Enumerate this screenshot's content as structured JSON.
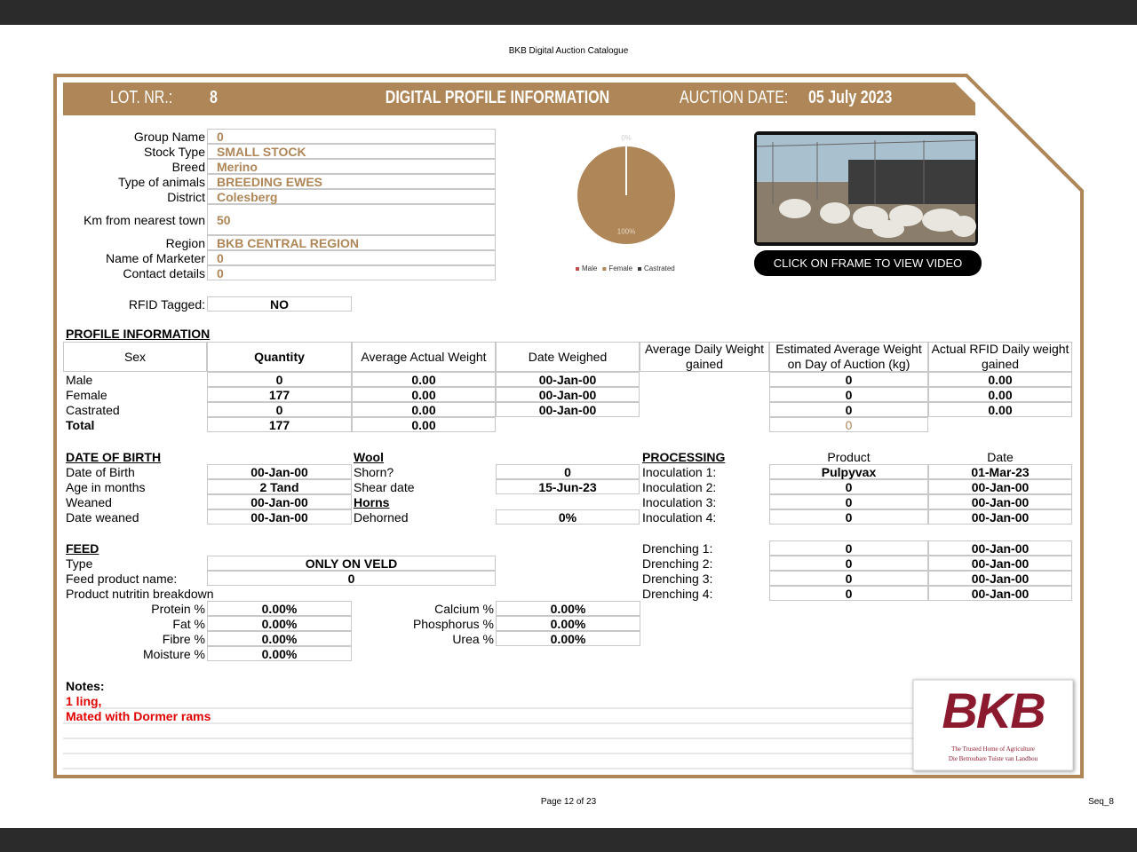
{
  "header": {
    "document_title": "BKB Digital Auction Catalogue",
    "lot_label": "LOT. NR.:",
    "lot_number": "8",
    "title": "DIGITAL PROFILE INFORMATION",
    "auction_date_label": "AUCTION DATE:",
    "auction_date": "05 July 2023"
  },
  "details": [
    {
      "label": "Group Name",
      "value": "0"
    },
    {
      "label": "Stock Type",
      "value": "SMALL STOCK"
    },
    {
      "label": "Breed",
      "value": "Merino"
    },
    {
      "label": "Type of animals",
      "value": "BREEDING EWES"
    },
    {
      "label": "District",
      "value": "Colesberg"
    },
    {
      "label": "Km from nearest town",
      "value": "50"
    },
    {
      "label": "Region",
      "value": "BKB CENTRAL REGION"
    },
    {
      "label": "Name of Marketer",
      "value": "0"
    },
    {
      "label": "Contact details",
      "value": "0"
    }
  ],
  "rfid": {
    "label": "RFID Tagged:",
    "value": "NO"
  },
  "chart_data": {
    "type": "pie",
    "categories": [
      "Male",
      "Female",
      "Castrated"
    ],
    "values": [
      0,
      100,
      0
    ],
    "value_labels": [
      "0%",
      "100%",
      null
    ],
    "colors": [
      "#c0504d",
      "#ae8658",
      "#3a3a3a"
    ]
  },
  "video": {
    "button": "CLICK ON FRAME TO VIEW VIDEO"
  },
  "profile": {
    "title": "PROFILE INFORMATION",
    "columns": [
      "Sex",
      "Quantity",
      "Average Actual Weight",
      "Date Weighed",
      "Average Daily Weight gained",
      "Estimated Average Weight on Day of Auction (kg)",
      "Actual RFID Daily weight gained"
    ],
    "rows": [
      [
        "Male",
        "0",
        "0.00",
        "00-Jan-00",
        null,
        "0",
        "0.00"
      ],
      [
        "Female",
        "177",
        "0.00",
        "00-Jan-00",
        null,
        "0",
        "0.00"
      ],
      [
        "Castrated",
        "0",
        "0.00",
        "00-Jan-00",
        null,
        "0",
        "0.00"
      ],
      [
        "Total",
        "177",
        "0.00",
        null,
        null,
        "0",
        null
      ]
    ]
  },
  "birth": {
    "title": "DATE OF BIRTH",
    "rows": [
      {
        "label": "Date of Birth",
        "value": "00-Jan-00"
      },
      {
        "label": "Age in months",
        "value": "2 Tand"
      },
      {
        "label": "Weaned",
        "value": "00-Jan-00"
      },
      {
        "label": "Date weaned",
        "value": "00-Jan-00"
      }
    ]
  },
  "wool": {
    "title": "Wool",
    "rows": [
      {
        "label": "Shorn?",
        "value": "0"
      },
      {
        "label": "Shear date",
        "value": "15-Jun-23"
      }
    ],
    "horns_title": "Horns",
    "horns_rows": [
      {
        "label": "Dehorned",
        "value": "0%"
      }
    ]
  },
  "processing": {
    "title": "PROCESSING",
    "product_header": "Product",
    "date_header": "Date",
    "inoculations": [
      {
        "label": "Inoculation 1:",
        "product": "Pulpyvax",
        "date": "01-Mar-23"
      },
      {
        "label": "Inoculation 2:",
        "product": "0",
        "date": "00-Jan-00"
      },
      {
        "label": "Inoculation 3:",
        "product": "0",
        "date": "00-Jan-00"
      },
      {
        "label": "Inoculation 4:",
        "product": "0",
        "date": "00-Jan-00"
      }
    ],
    "drenchings": [
      {
        "label": "Drenching 1:",
        "product": "0",
        "date": "00-Jan-00"
      },
      {
        "label": "Drenching 2:",
        "product": "0",
        "date": "00-Jan-00"
      },
      {
        "label": "Drenching 3:",
        "product": "0",
        "date": "00-Jan-00"
      },
      {
        "label": "Drenching 4:",
        "product": "0",
        "date": "00-Jan-00"
      }
    ]
  },
  "feed": {
    "title": "FEED",
    "type_label": "Type",
    "type": "ONLY ON VELD",
    "product_label": "Feed product name:",
    "product": "0",
    "breakdown_label": "Product nutritin breakdown",
    "nutrients": [
      {
        "label": "Protein %",
        "value": "0.00%"
      },
      {
        "label": "Fat %",
        "value": "0.00%"
      },
      {
        "label": "Fibre %",
        "value": "0.00%"
      },
      {
        "label": "Moisture %",
        "value": "0.00%"
      },
      {
        "label": "Calcium %",
        "value": "0.00%"
      },
      {
        "label": "Phosphorus %",
        "value": "0.00%"
      },
      {
        "label": "Urea %",
        "value": "0.00%"
      }
    ]
  },
  "notes": {
    "title": "Notes:",
    "lines": [
      "1 ling,",
      "Mated with Dormer rams"
    ]
  },
  "logo": {
    "text": "BKB",
    "tagline_en": "The Trusted Home of Agriculture",
    "tagline_af": "Die Betroubare Tuiste van Landbou"
  },
  "footer": {
    "page": "Page 12 of 23",
    "sequence": "Seq_8"
  }
}
